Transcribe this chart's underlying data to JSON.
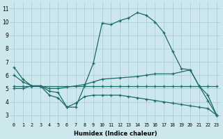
{
  "xlabel": "Humidex (Indice chaleur)",
  "background_color": "#cce8ec",
  "grid_color": "#aacdd4",
  "line_color": "#1a6b6b",
  "xlim": [
    -0.5,
    23.5
  ],
  "ylim": [
    2.5,
    11.5
  ],
  "xticks": [
    0,
    1,
    2,
    3,
    4,
    5,
    6,
    7,
    8,
    9,
    10,
    11,
    12,
    13,
    14,
    15,
    16,
    17,
    18,
    19,
    20,
    21,
    22,
    23
  ],
  "yticks": [
    3,
    4,
    5,
    6,
    7,
    8,
    9,
    10,
    11
  ],
  "line1_x": [
    0,
    1,
    2,
    3,
    4,
    5,
    6,
    7,
    8,
    9,
    10,
    11,
    12,
    13,
    14,
    15,
    16,
    17,
    18,
    19,
    20,
    21,
    22,
    23
  ],
  "line1_y": [
    6.6,
    5.7,
    5.2,
    5.2,
    4.8,
    4.7,
    3.6,
    3.6,
    5.2,
    6.9,
    9.9,
    9.8,
    10.1,
    10.3,
    10.7,
    10.5,
    10.0,
    9.2,
    7.8,
    6.5,
    6.4,
    5.2,
    4.1,
    3.0
  ],
  "line2_x": [
    0,
    1,
    2,
    3,
    4,
    5,
    6,
    7,
    8,
    9,
    10,
    12,
    14,
    15,
    16,
    18,
    20,
    21,
    22,
    23
  ],
  "line2_y": [
    6.0,
    5.5,
    5.2,
    5.2,
    5.0,
    5.0,
    5.1,
    5.2,
    5.3,
    5.5,
    5.7,
    5.8,
    5.9,
    6.0,
    6.1,
    6.1,
    6.4,
    5.2,
    4.5,
    3.0
  ],
  "line3_x": [
    0,
    1,
    2,
    3,
    4,
    5,
    6,
    7,
    8,
    9,
    10,
    11,
    12,
    13,
    14,
    15,
    16,
    17,
    18,
    19,
    20,
    21,
    22,
    23
  ],
  "line3_y": [
    5.0,
    5.0,
    5.2,
    5.2,
    4.5,
    4.3,
    3.6,
    3.9,
    4.4,
    4.5,
    4.5,
    4.5,
    4.5,
    4.4,
    4.3,
    4.2,
    4.1,
    4.0,
    3.9,
    3.8,
    3.7,
    3.6,
    3.5,
    3.0
  ],
  "line4_x": [
    0,
    1,
    2,
    3,
    9,
    10,
    11,
    12,
    13,
    14,
    15,
    16,
    17,
    18,
    19,
    20,
    21,
    22,
    23
  ],
  "line4_y": [
    5.2,
    5.2,
    5.2,
    5.2,
    5.2,
    5.2,
    5.2,
    5.2,
    5.2,
    5.2,
    5.2,
    5.2,
    5.2,
    5.2,
    5.2,
    5.2,
    5.2,
    5.2,
    5.2
  ]
}
